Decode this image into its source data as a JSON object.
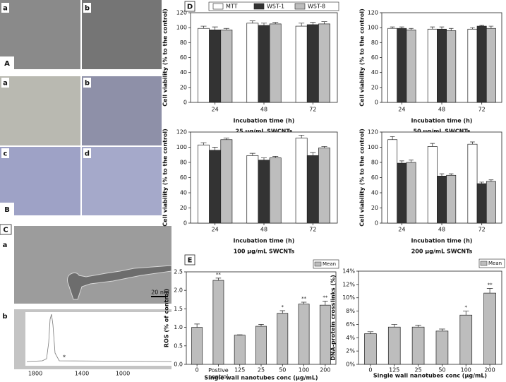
{
  "image_labels": {
    "A": {
      "panel": "A",
      "a": "a",
      "b": "b"
    },
    "B": {
      "panel": "B",
      "a": "a",
      "b": "b",
      "c": "c",
      "d": "d"
    },
    "C": {
      "panel": "C",
      "a": "a",
      "scale": "20 nm",
      "b": "b",
      "spectrum_ticks": [
        "1800",
        "1400",
        "1000"
      ],
      "mark": "*"
    }
  },
  "chart_data": [
    {
      "type": "bar",
      "panel": "D",
      "subtitle": "25 μg/mL SWCNTs",
      "x_label": "Incubation time (h)",
      "y_label": "Cell viability (% to the control)",
      "categories": [
        "24",
        "48",
        "72"
      ],
      "ylim": [
        0,
        120
      ],
      "yticks": [
        0,
        20,
        40,
        60,
        80,
        100,
        120
      ],
      "legend": "top",
      "series": [
        {
          "name": "MTT",
          "color": "#ffffff",
          "values": [
            99,
            106,
            102
          ],
          "errors": [
            3,
            3,
            4
          ]
        },
        {
          "name": "WST-1",
          "color": "#333333",
          "values": [
            97,
            103,
            104
          ],
          "errors": [
            4,
            3,
            3
          ]
        },
        {
          "name": "WST-8",
          "color": "#bdbdbd",
          "values": [
            97,
            105,
            105
          ],
          "errors": [
            2,
            2,
            3
          ]
        }
      ]
    },
    {
      "type": "bar",
      "subtitle": "50 μg/mL SWCNTs",
      "x_label": "Incubation time (h)",
      "y_label": "Cell viability (% to the control)",
      "categories": [
        "24",
        "48",
        "72"
      ],
      "ylim": [
        0,
        120
      ],
      "yticks": [
        0,
        20,
        40,
        60,
        80,
        100,
        120
      ],
      "series": [
        {
          "color": "#ffffff",
          "values": [
            99,
            98,
            98
          ],
          "errors": [
            2,
            3,
            2
          ]
        },
        {
          "color": "#333333",
          "values": [
            99,
            98,
            102
          ],
          "errors": [
            2,
            3,
            1
          ]
        },
        {
          "color": "#bdbdbd",
          "values": [
            97,
            96,
            99
          ],
          "errors": [
            2,
            3,
            3
          ]
        }
      ]
    },
    {
      "type": "bar",
      "subtitle": "100 μg/mL SWCNTs",
      "x_label": "Incubation time (h)",
      "y_label": "Cell viability (% to the control)",
      "categories": [
        "24",
        "48",
        "72"
      ],
      "ylim": [
        0,
        120
      ],
      "yticks": [
        0,
        20,
        40,
        60,
        80,
        100,
        120
      ],
      "series": [
        {
          "color": "#ffffff",
          "values": [
            103,
            89,
            112
          ],
          "errors": [
            3,
            3,
            4
          ]
        },
        {
          "color": "#333333",
          "values": [
            96,
            83,
            89
          ],
          "errors": [
            4,
            3,
            4
          ]
        },
        {
          "color": "#bdbdbd",
          "values": [
            110,
            86,
            99
          ],
          "errors": [
            2,
            2,
            2
          ]
        }
      ]
    },
    {
      "type": "bar",
      "subtitle": "200 μg/mL SWCNTs",
      "x_label": "Incubation time (h)",
      "y_label": "Cell viability (% to the control)",
      "categories": [
        "24",
        "48",
        "72"
      ],
      "ylim": [
        0,
        120
      ],
      "yticks": [
        0,
        20,
        40,
        60,
        80,
        100,
        120
      ],
      "series": [
        {
          "color": "#ffffff",
          "values": [
            110,
            101,
            104
          ],
          "errors": [
            4,
            4,
            3
          ]
        },
        {
          "color": "#333333",
          "values": [
            79,
            62,
            52
          ],
          "errors": [
            3,
            3,
            2
          ]
        },
        {
          "color": "#bdbdbd",
          "values": [
            80,
            63,
            55
          ],
          "errors": [
            3,
            2,
            2
          ]
        }
      ]
    },
    {
      "type": "bar",
      "panel": "E",
      "x_label": "Single wall nanotubes conc (μg/mL)",
      "y_label": "ROS (% of control)",
      "categories": [
        "0",
        "Postive control",
        "125",
        "25",
        "50",
        "100",
        "200"
      ],
      "ylim": [
        0,
        2.5
      ],
      "yticks": [
        {
          "value": 0,
          "label": "0.0"
        },
        0.5,
        {
          "value": 1,
          "label": "1.0"
        },
        1.5,
        {
          "value": 2,
          "label": "2.0"
        },
        2.5
      ],
      "legend": "top-right",
      "significance": [
        null,
        "**",
        null,
        null,
        "*",
        "**",
        "**"
      ],
      "series": [
        {
          "name": "Mean",
          "color": "#bdbdbd",
          "values": [
            1.0,
            2.27,
            0.79,
            1.03,
            1.38,
            1.63,
            1.6
          ],
          "errors": [
            0.09,
            0.06,
            0.01,
            0.05,
            0.07,
            0.05,
            0.11
          ]
        }
      ]
    },
    {
      "type": "bar",
      "x_label": "Single wall nanotubes conc (μg/mL)",
      "y_label": "DNA-protein crosslinks (%)",
      "categories": [
        "0",
        "125",
        "25",
        "50",
        "100",
        "200"
      ],
      "ylim": [
        0,
        14
      ],
      "yticks": [
        {
          "value": 0,
          "label": "0%"
        },
        {
          "value": 2,
          "label": "2%"
        },
        {
          "value": 4,
          "label": "4%"
        },
        {
          "value": 6,
          "label": "6%"
        },
        {
          "value": 8,
          "label": "8%"
        },
        {
          "value": 10,
          "label": "10%"
        },
        {
          "value": 12,
          "label": "12%"
        },
        {
          "value": 14,
          "label": "14%"
        }
      ],
      "legend": "top-right",
      "significance": [
        null,
        null,
        null,
        null,
        "*",
        "**"
      ],
      "series": [
        {
          "name": "Mean",
          "color": "#bdbdbd",
          "values": [
            4.6,
            5.6,
            5.6,
            5.0,
            7.4,
            10.7
          ],
          "errors": [
            0.3,
            0.4,
            0.3,
            0.3,
            0.6,
            0.7
          ]
        }
      ]
    }
  ]
}
